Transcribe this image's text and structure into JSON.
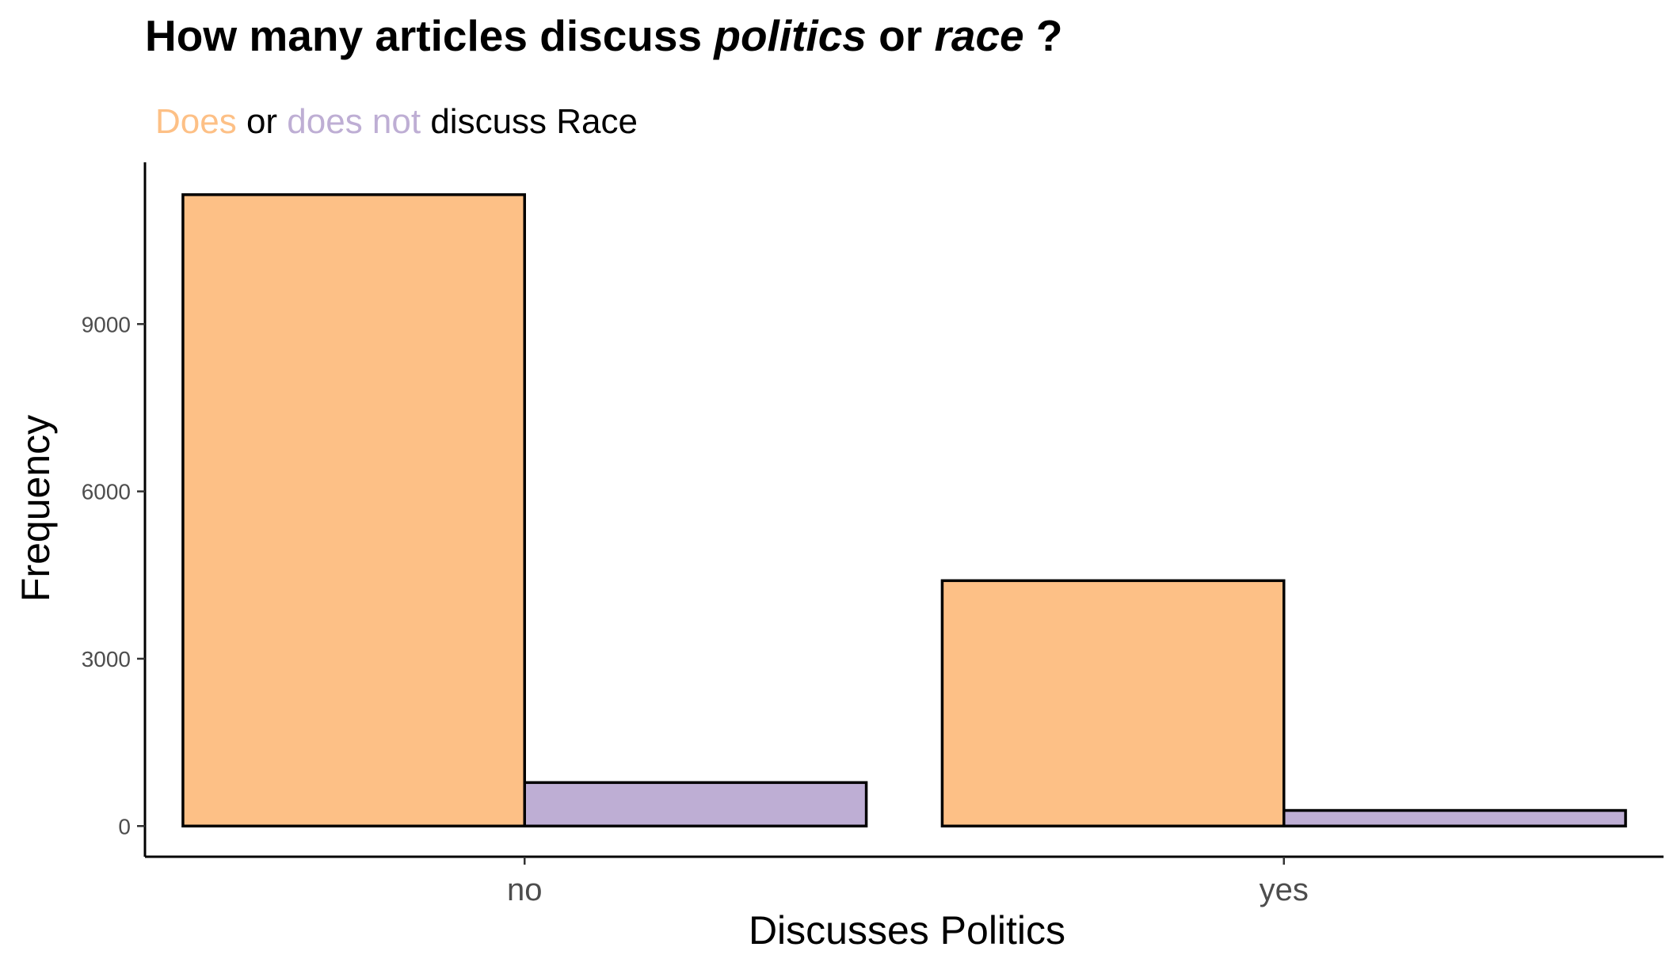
{
  "chart_data": {
    "type": "bar",
    "title": {
      "parts": [
        {
          "text": "How many articles discuss ",
          "italic": false
        },
        {
          "text": "politics",
          "italic": true
        },
        {
          "text": " or ",
          "italic": false
        },
        {
          "text": "race",
          "italic": true
        },
        {
          "text": " ?",
          "italic": false
        }
      ]
    },
    "subtitle": {
      "parts": [
        {
          "text": "Does",
          "color": "#FDC086"
        },
        {
          "text": " or ",
          "color": "#000000"
        },
        {
          "text": "does not",
          "color": "#BEAED4"
        },
        {
          "text": " discuss Race",
          "color": "#000000"
        }
      ]
    },
    "xlabel": "Discusses Politics",
    "ylabel": "Frequency",
    "categories": [
      "no",
      "yes"
    ],
    "series": [
      {
        "key": "does",
        "color": "#FDC086",
        "values": [
          11320,
          4400
        ]
      },
      {
        "key": "does-not",
        "color": "#BEAED4",
        "values": [
          780,
          280
        ]
      }
    ],
    "yticks": [
      0,
      3000,
      6000,
      9000
    ],
    "ylim": [
      -550,
      11900
    ],
    "grid": false,
    "legend": "none"
  }
}
